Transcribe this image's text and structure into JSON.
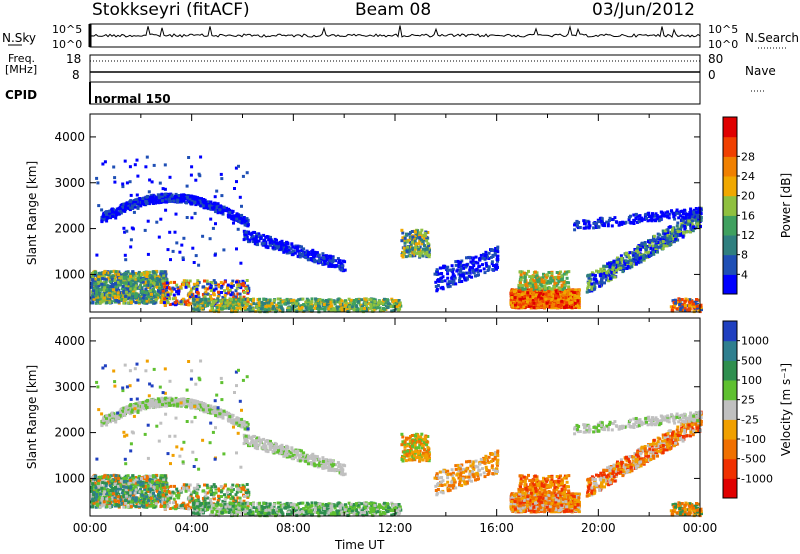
{
  "header": {
    "radar": "Stokkseyri (fitACF)",
    "beam": "Beam 08",
    "date": "03/Jun/2012"
  },
  "strip": {
    "nsky_label": "N.Sky",
    "nsky_ticks": [
      "10^5",
      "10^0"
    ],
    "nsearch_label": "N.Search",
    "nsearch_ticks": [
      "10^5",
      "10^0"
    ],
    "freq_label": "Freq.",
    "freq_unit": "[MHz]",
    "freq_ticks": [
      "18",
      "8"
    ],
    "nave_label": "Nave",
    "nave_ticks": [
      "80",
      "0"
    ],
    "cpid_label": "CPID",
    "cpid_value": "normal 150"
  },
  "chart_data": [
    {
      "type": "heatmap",
      "panel": "power",
      "ylabel": "Slant Range [km]",
      "y_ticks": [
        "1000",
        "2000",
        "3000",
        "4000"
      ],
      "ylim": [
        180,
        4500
      ],
      "xlim": [
        0,
        24
      ],
      "colorbar": {
        "label": "Power [dB]",
        "ticks": [
          "4",
          "8",
          "12",
          "16",
          "20",
          "24",
          "28"
        ],
        "colors": [
          "#0000ff",
          "#1f4fb5",
          "#2f7f7f",
          "#3fa05f",
          "#8fc03f",
          "#f0a800",
          "#f08000",
          "#f04000",
          "#e00000"
        ]
      },
      "features": [
        {
          "t0": 16.5,
          "t1": 19.2,
          "r0": 300,
          "r1": 700,
          "level": "high"
        },
        {
          "t0": 0.0,
          "t1": 3.0,
          "r0": 400,
          "r1": 1100,
          "level": "mid"
        },
        {
          "t0": 0.3,
          "t1": 6.0,
          "r0": 1800,
          "r1": 2600,
          "level": "low"
        },
        {
          "t0": 12.3,
          "t1": 13.3,
          "r0": 1400,
          "r1": 2000,
          "level": "mid"
        }
      ]
    },
    {
      "type": "heatmap",
      "panel": "velocity",
      "ylabel": "Slant Range [km]",
      "y_ticks": [
        "1000",
        "2000",
        "3000",
        "4000"
      ],
      "ylim": [
        180,
        4500
      ],
      "xlim": [
        0,
        24
      ],
      "colorbar": {
        "label": "Velocity [m s⁻¹]",
        "ticks": [
          "1000",
          "500",
          "100",
          "25",
          "-25",
          "-100",
          "-500",
          "-1000"
        ],
        "colors": [
          "#2040c0",
          "#2f7f8f",
          "#2f8f4f",
          "#5fc030",
          "#c0c0c0",
          "#f0a000",
          "#f07000",
          "#f03000",
          "#e00000"
        ]
      },
      "features": [
        {
          "t0": 16.5,
          "t1": 19.5,
          "r0": 300,
          "r1": 700,
          "level": "neg"
        },
        {
          "t0": 0.0,
          "t1": 6.0,
          "r0": 400,
          "r1": 1100,
          "level": "pos"
        },
        {
          "t0": 0.3,
          "t1": 24.0,
          "r0": 1800,
          "r1": 2600,
          "level": "zero"
        }
      ]
    }
  ],
  "x_axis": {
    "label": "Time UT",
    "ticks": [
      "00:00",
      "04:00",
      "08:00",
      "12:00",
      "16:00",
      "20:00",
      "00:00"
    ]
  }
}
